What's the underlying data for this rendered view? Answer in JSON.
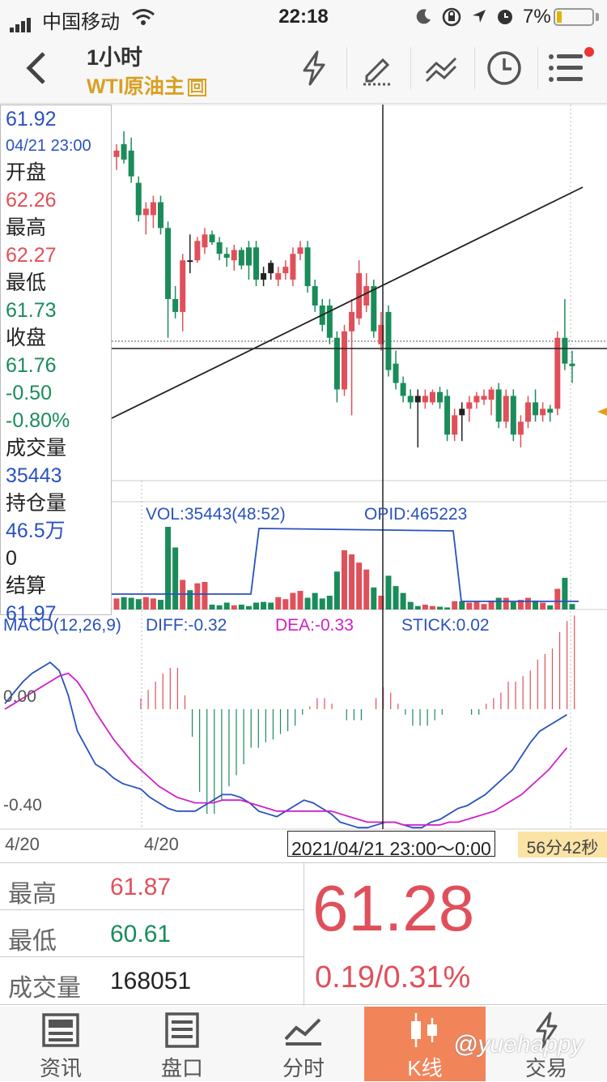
{
  "status_bar": {
    "carrier": "中国移动",
    "time": "22:18",
    "battery": "7%"
  },
  "nav": {
    "period": "1小时",
    "instrument": "WTI原油主",
    "instrument_badge": "回"
  },
  "info_panel": {
    "price": "61.92",
    "datetime": "04/21 23:00",
    "open_label": "开盘",
    "open": "62.26",
    "high_label": "最高",
    "high": "62.27",
    "low_label": "最低",
    "low": "61.73",
    "close_label": "收盘",
    "close": "61.76",
    "change": "-0.50",
    "change_pct": "-0.80%",
    "volume_label": "成交量",
    "volume": "35443",
    "oi_label": "持仓量",
    "oi": "46.5万",
    "oi_change": "0",
    "settle_label": "结算",
    "settle": "61.97"
  },
  "volume_panel": {
    "vol_label": "VOL:35443(48:52)",
    "opid_label": "OPID:465223"
  },
  "macd_panel": {
    "title": "MACD(12,26,9)",
    "diff": "DIFF:-0.32",
    "dea": "DEA:-0.33",
    "stick": "STICK:0.02",
    "level_top": "0.00",
    "level_bottom": "-0.40"
  },
  "date_bar": {
    "left_date": "4/20",
    "second_date": "4/20",
    "cursor_time": "2021/04/21 23:00～0:00",
    "countdown": "56分42秒"
  },
  "quote": {
    "high_label": "最高",
    "high": "61.87",
    "low_label": "最低",
    "low": "60.61",
    "volume_label": "成交量",
    "volume": "168051",
    "last": "61.28",
    "change": "0.19/0.31%"
  },
  "tabs": [
    {
      "label": "资讯",
      "icon": "news-icon"
    },
    {
      "label": "盘口",
      "icon": "orderbook-icon"
    },
    {
      "label": "分时",
      "icon": "timeshare-icon"
    },
    {
      "label": "K线",
      "icon": "candlestick-icon"
    },
    {
      "label": "交易",
      "icon": "trade-icon"
    }
  ],
  "watermark": "@yuehappy",
  "chart_data": {
    "type": "candlestick",
    "price_range": [
      60.4,
      63.3
    ],
    "crosshair_price": 61.92,
    "candles": [
      {
        "o": 62.9,
        "h": 63.0,
        "l": 62.8,
        "c": 62.95,
        "color": "red"
      },
      {
        "o": 63.0,
        "h": 63.1,
        "l": 62.85,
        "c": 62.88,
        "color": "green"
      },
      {
        "o": 62.95,
        "h": 63.05,
        "l": 62.7,
        "c": 62.75,
        "color": "green"
      },
      {
        "o": 62.7,
        "h": 62.75,
        "l": 62.4,
        "c": 62.45,
        "color": "green"
      },
      {
        "o": 62.45,
        "h": 62.55,
        "l": 62.3,
        "c": 62.5,
        "color": "red"
      },
      {
        "o": 62.45,
        "h": 62.6,
        "l": 62.35,
        "c": 62.55,
        "color": "red"
      },
      {
        "o": 62.55,
        "h": 62.6,
        "l": 62.3,
        "c": 62.35,
        "color": "green"
      },
      {
        "o": 62.35,
        "h": 62.4,
        "l": 61.5,
        "c": 61.8,
        "color": "green"
      },
      {
        "o": 61.8,
        "h": 61.9,
        "l": 61.65,
        "c": 61.7,
        "color": "green"
      },
      {
        "o": 61.7,
        "h": 62.15,
        "l": 61.55,
        "c": 62.1,
        "color": "red"
      },
      {
        "o": 62.1,
        "h": 62.3,
        "l": 62.0,
        "c": 62.1,
        "color": "dark"
      },
      {
        "o": 62.1,
        "h": 62.28,
        "l": 62.08,
        "c": 62.25,
        "color": "red"
      },
      {
        "o": 62.2,
        "h": 62.35,
        "l": 62.15,
        "c": 62.3,
        "color": "red"
      },
      {
        "o": 62.3,
        "h": 62.33,
        "l": 62.22,
        "c": 62.24,
        "color": "green"
      },
      {
        "o": 62.24,
        "h": 62.28,
        "l": 62.1,
        "c": 62.15,
        "color": "green"
      },
      {
        "o": 62.15,
        "h": 62.2,
        "l": 62.05,
        "c": 62.12,
        "color": "green"
      },
      {
        "o": 62.1,
        "h": 62.22,
        "l": 62.02,
        "c": 62.18,
        "color": "red"
      },
      {
        "o": 62.18,
        "h": 62.2,
        "l": 62.03,
        "c": 62.06,
        "color": "green"
      },
      {
        "o": 62.06,
        "h": 62.25,
        "l": 61.95,
        "c": 62.2,
        "color": "green"
      },
      {
        "o": 62.2,
        "h": 62.25,
        "l": 61.9,
        "c": 61.95,
        "color": "green"
      },
      {
        "o": 61.95,
        "h": 62.05,
        "l": 61.9,
        "c": 62.0,
        "color": "dark"
      },
      {
        "o": 62.0,
        "h": 62.1,
        "l": 61.95,
        "c": 62.08,
        "color": "dark"
      },
      {
        "o": 61.95,
        "h": 62.05,
        "l": 61.9,
        "c": 62.0,
        "color": "red"
      },
      {
        "o": 62.0,
        "h": 62.1,
        "l": 61.95,
        "c": 62.05,
        "color": "red"
      },
      {
        "o": 61.95,
        "h": 62.2,
        "l": 61.9,
        "c": 62.15,
        "color": "red"
      },
      {
        "o": 62.15,
        "h": 62.25,
        "l": 62.1,
        "c": 62.2,
        "color": "red"
      },
      {
        "o": 62.2,
        "h": 62.25,
        "l": 61.85,
        "c": 61.9,
        "color": "green"
      },
      {
        "o": 61.9,
        "h": 61.95,
        "l": 61.7,
        "c": 61.75,
        "color": "green"
      },
      {
        "o": 61.75,
        "h": 61.8,
        "l": 61.55,
        "c": 61.6,
        "color": "green"
      },
      {
        "o": 61.75,
        "h": 61.8,
        "l": 61.45,
        "c": 61.5,
        "color": "green"
      },
      {
        "o": 61.5,
        "h": 61.55,
        "l": 61.0,
        "c": 61.1,
        "color": "green"
      },
      {
        "o": 61.1,
        "h": 61.6,
        "l": 61.05,
        "c": 61.55,
        "color": "red"
      },
      {
        "o": 61.55,
        "h": 61.8,
        "l": 60.9,
        "c": 61.7,
        "color": "red"
      },
      {
        "o": 61.65,
        "h": 62.1,
        "l": 61.6,
        "c": 62.0,
        "color": "red"
      },
      {
        "o": 61.75,
        "h": 62.0,
        "l": 61.7,
        "c": 61.9,
        "color": "red"
      },
      {
        "o": 61.9,
        "h": 61.95,
        "l": 61.5,
        "c": 61.55,
        "color": "green"
      },
      {
        "o": 61.6,
        "h": 61.7,
        "l": 61.4,
        "c": 61.45,
        "color": "red"
      },
      {
        "o": 61.7,
        "h": 61.75,
        "l": 61.2,
        "c": 61.25,
        "color": "green"
      },
      {
        "o": 61.3,
        "h": 61.4,
        "l": 61.1,
        "c": 61.15,
        "color": "green"
      },
      {
        "o": 61.15,
        "h": 61.2,
        "l": 61.0,
        "c": 61.05,
        "color": "green"
      },
      {
        "o": 61.05,
        "h": 61.1,
        "l": 60.95,
        "c": 61.0,
        "color": "green"
      },
      {
        "o": 61.0,
        "h": 61.1,
        "l": 60.65,
        "c": 61.05,
        "color": "dark"
      },
      {
        "o": 61.05,
        "h": 61.1,
        "l": 60.95,
        "c": 61.0,
        "color": "red"
      },
      {
        "o": 61.0,
        "h": 61.1,
        "l": 60.98,
        "c": 61.08,
        "color": "red"
      },
      {
        "o": 61.08,
        "h": 61.12,
        "l": 60.95,
        "c": 61.0,
        "color": "green"
      },
      {
        "o": 61.05,
        "h": 61.1,
        "l": 60.7,
        "c": 60.75,
        "color": "green"
      },
      {
        "o": 60.75,
        "h": 60.95,
        "l": 60.7,
        "c": 60.9,
        "color": "red"
      },
      {
        "o": 60.9,
        "h": 61.0,
        "l": 60.7,
        "c": 60.95,
        "color": "dark"
      },
      {
        "o": 60.95,
        "h": 61.05,
        "l": 60.85,
        "c": 61.0,
        "color": "red"
      },
      {
        "o": 61.0,
        "h": 61.08,
        "l": 60.95,
        "c": 61.05,
        "color": "red"
      },
      {
        "o": 61.05,
        "h": 61.1,
        "l": 60.98,
        "c": 61.02,
        "color": "red"
      },
      {
        "o": 61.02,
        "h": 61.12,
        "l": 60.9,
        "c": 61.1,
        "color": "red"
      },
      {
        "o": 61.1,
        "h": 61.15,
        "l": 60.8,
        "c": 60.85,
        "color": "green"
      },
      {
        "o": 60.85,
        "h": 61.1,
        "l": 60.8,
        "c": 61.05,
        "color": "red"
      },
      {
        "o": 61.05,
        "h": 61.1,
        "l": 60.7,
        "c": 60.75,
        "color": "green"
      },
      {
        "o": 60.75,
        "h": 60.9,
        "l": 60.65,
        "c": 60.85,
        "color": "red"
      },
      {
        "o": 60.85,
        "h": 61.05,
        "l": 60.8,
        "c": 61.0,
        "color": "red"
      },
      {
        "o": 61.0,
        "h": 61.1,
        "l": 60.85,
        "c": 60.9,
        "color": "green"
      },
      {
        "o": 60.9,
        "h": 61.0,
        "l": 60.85,
        "c": 60.95,
        "color": "red"
      },
      {
        "o": 60.95,
        "h": 60.98,
        "l": 60.85,
        "c": 60.92,
        "color": "green"
      },
      {
        "o": 60.95,
        "h": 61.55,
        "l": 60.9,
        "c": 61.5,
        "color": "red"
      },
      {
        "o": 61.5,
        "h": 61.8,
        "l": 61.25,
        "c": 61.3,
        "color": "green"
      },
      {
        "o": 61.3,
        "h": 61.4,
        "l": 61.15,
        "c": 61.28,
        "color": "green"
      }
    ],
    "volume": [
      1600,
      1800,
      1700,
      1500,
      1800,
      1600,
      1400,
      12000,
      9000,
      4300,
      2800,
      3800,
      4000,
      700,
      600,
      1000,
      600,
      700,
      500,
      1000,
      1100,
      1000,
      1800,
      1500,
      2400,
      2700,
      1700,
      2400,
      1600,
      2000,
      5500,
      8600,
      8000,
      6800,
      5800,
      3200,
      2000,
      4900,
      3400,
      2400,
      1100,
      500,
      700,
      500,
      400,
      300,
      1200,
      1200,
      1000,
      1200,
      800,
      1300,
      1700,
      1700,
      1100,
      1400,
      1700,
      1300,
      1000,
      600,
      3000,
      4600,
      800
    ],
    "open_interest": [
      468500,
      468500,
      468500,
      468500,
      468500,
      468500,
      468500,
      468500,
      468500,
      468500,
      468500,
      468500,
      468500,
      468500,
      468500,
      468500,
      468500,
      468500,
      468500,
      468500,
      468500,
      468500,
      468500,
      468500,
      468500,
      468500,
      468500,
      468500,
      468500,
      468500,
      468500,
      468500,
      468500,
      468500,
      468500,
      468500,
      468500,
      468500,
      468500,
      468500,
      468500,
      468500,
      468500,
      468500,
      468500,
      468500,
      468500,
      468500,
      468500,
      468500,
      468500,
      468500,
      468500,
      468500,
      468500,
      468500,
      468500,
      468500,
      468500,
      468500,
      468500,
      468500,
      468500
    ],
    "macd": {
      "diff": [
        0.02,
        0.06,
        0.1,
        0.13,
        0.15,
        0.17,
        0.14,
        0.05,
        -0.08,
        -0.14,
        -0.2,
        -0.22,
        -0.25,
        -0.27,
        -0.28,
        -0.29,
        -0.32,
        -0.34,
        -0.36,
        -0.37,
        -0.37,
        -0.37,
        -0.35,
        -0.33,
        -0.31,
        -0.31,
        -0.32,
        -0.34,
        -0.37,
        -0.38,
        -0.39,
        -0.37,
        -0.35,
        -0.33,
        -0.34,
        -0.36,
        -0.38,
        -0.41,
        -0.42,
        -0.43,
        -0.43,
        -0.42,
        -0.41,
        -0.41,
        -0.42,
        -0.43,
        -0.43,
        -0.41,
        -0.4,
        -0.38,
        -0.36,
        -0.35,
        -0.33,
        -0.31,
        -0.28,
        -0.25,
        -0.22,
        -0.17,
        -0.12,
        -0.08,
        -0.06,
        -0.04,
        -0.02
      ],
      "dea": [
        0.0,
        0.02,
        0.04,
        0.06,
        0.08,
        0.1,
        0.12,
        0.13,
        0.1,
        0.05,
        -0.01,
        -0.06,
        -0.11,
        -0.15,
        -0.19,
        -0.22,
        -0.25,
        -0.28,
        -0.3,
        -0.32,
        -0.33,
        -0.34,
        -0.34,
        -0.34,
        -0.33,
        -0.33,
        -0.33,
        -0.34,
        -0.35,
        -0.36,
        -0.37,
        -0.37,
        -0.37,
        -0.37,
        -0.37,
        -0.37,
        -0.37,
        -0.38,
        -0.39,
        -0.4,
        -0.41,
        -0.41,
        -0.41,
        -0.41,
        -0.42,
        -0.42,
        -0.42,
        -0.42,
        -0.42,
        -0.41,
        -0.41,
        -0.4,
        -0.39,
        -0.38,
        -0.37,
        -0.35,
        -0.33,
        -0.31,
        -0.28,
        -0.25,
        -0.22,
        -0.18,
        -0.14
      ],
      "stick": [
        0.04,
        0.07,
        0.1,
        0.13,
        0.15,
        0.15,
        0.05,
        -0.1,
        -0.3,
        -0.38,
        -0.38,
        -0.33,
        -0.28,
        -0.24,
        -0.2,
        -0.14,
        -0.14,
        -0.12,
        -0.11,
        -0.09,
        -0.08,
        -0.06,
        -0.02,
        0.01,
        0.04,
        0.04,
        0.02,
        0.0,
        -0.04,
        -0.04,
        -0.04,
        0.0,
        0.04,
        0.08,
        0.06,
        0.02,
        -0.02,
        -0.06,
        -0.06,
        -0.06,
        -0.04,
        -0.02,
        0.0,
        0.0,
        0.0,
        -0.02,
        -0.02,
        0.02,
        0.04,
        0.06,
        0.1,
        0.1,
        0.12,
        0.14,
        0.18,
        0.2,
        0.22,
        0.28,
        0.32,
        0.34,
        0.32,
        0.28,
        0.24
      ]
    }
  }
}
